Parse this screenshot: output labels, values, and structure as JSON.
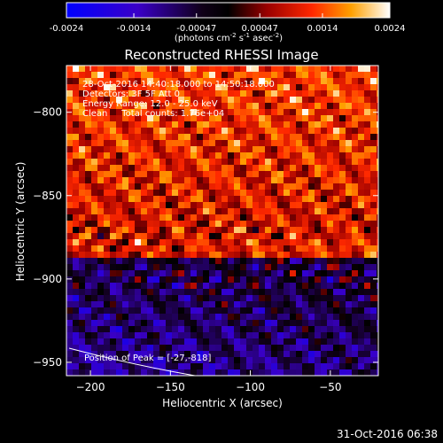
{
  "colorbar": {
    "ticks": [
      "-0.0024",
      "-0.0014",
      "-0.00047",
      "0.00047",
      "0.0014",
      "0.0024"
    ],
    "units_prefix": "(photons cm",
    "units_sup1": "-2",
    "units_mid1": " s",
    "units_sup2": "-1",
    "units_mid2": " asec",
    "units_sup3": "-2",
    "units_suffix": ")"
  },
  "chart_data": {
    "type": "heatmap",
    "title": "Reconstructed RHESSI Image",
    "xlabel": "Heliocentric X (arcsec)",
    "ylabel": "Heliocentric Y (arcsec)",
    "xlim": [
      -215,
      -20
    ],
    "ylim": [
      -958,
      -772
    ],
    "x_ticks": [
      -200,
      -150,
      -100,
      -50
    ],
    "y_ticks": [
      -800,
      -850,
      -900,
      -950
    ],
    "x_tick_labels": [
      "−200",
      "−150",
      "−100",
      "−50"
    ],
    "y_tick_labels": [
      "−800",
      "−850",
      "−900",
      "−950"
    ],
    "color_range": [
      -0.0024,
      0.0024
    ],
    "colormap": "RHESSI blue-black-red-yellow-white",
    "annotations": [
      "28-Oct-2016 14:40:18.000 to 14:50:18.000",
      "Detectors: 3F 5F  Att 0",
      "Energy Range: 12.0 - 25.0 keV",
      "Clean     Total counts: 1.76e+04"
    ],
    "peak_label": "Position of Peak = [-27,-818]",
    "peak": [
      -27,
      -818
    ],
    "limb_arc": true
  },
  "footer": {
    "timestamp": "31-Oct-2016 06:38"
  }
}
